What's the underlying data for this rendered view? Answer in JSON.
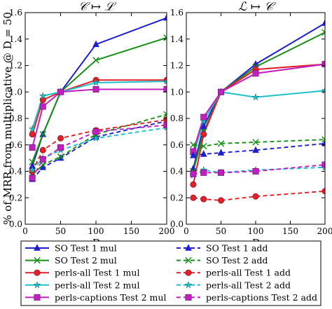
{
  "chart_data": [
    {
      "type": "line",
      "title": "𝒞 ↦ ℒ",
      "ylabel": "% of MRR from multiplicative @ D = 50",
      "xlabel": "D",
      "xlim": [
        0,
        200
      ],
      "ylim": [
        0,
        1.6
      ],
      "xticks": [
        "0",
        "50",
        "100",
        "150",
        "200"
      ],
      "yticks": [
        "0.0",
        "0.2",
        "0.4",
        "0.6",
        "0.8",
        "1.0",
        "1.2",
        "1.4",
        "1.6"
      ],
      "x": [
        10,
        25,
        50,
        100,
        200
      ],
      "series": [
        {
          "name": "SO Test 1 mul",
          "values": [
            0.44,
            0.68,
            1.0,
            1.36,
            1.56
          ],
          "color": "#1f1fd0",
          "dash": false,
          "marker": "triangle"
        },
        {
          "name": "SO Test 2 mul",
          "values": [
            0.47,
            0.68,
            1.0,
            1.24,
            1.41
          ],
          "color": "#1a8f1a",
          "dash": false,
          "marker": "x"
        },
        {
          "name": "perls-all Test 1 mul",
          "values": [
            0.68,
            0.94,
            1.0,
            1.09,
            1.09
          ],
          "color": "#e0202a",
          "dash": false,
          "marker": "circle"
        },
        {
          "name": "perls-all Test 2 mul",
          "values": [
            0.72,
            0.97,
            1.0,
            1.07,
            1.08
          ],
          "color": "#20c0c8",
          "dash": false,
          "marker": "star"
        },
        {
          "name": "perls-captions Test 2 mul",
          "values": [
            0.58,
            0.89,
            1.0,
            1.02,
            1.02
          ],
          "color": "#c020c0",
          "dash": false,
          "marker": "square"
        },
        {
          "name": "SO Test 1 add",
          "values": [
            0.34,
            0.43,
            0.5,
            0.66,
            0.78
          ],
          "color": "#1f1fd0",
          "dash": true,
          "marker": "triangle"
        },
        {
          "name": "SO Test 2 add",
          "values": [
            0.37,
            0.45,
            0.51,
            0.68,
            0.83
          ],
          "color": "#1a8f1a",
          "dash": true,
          "marker": "x"
        },
        {
          "name": "perls-all Test 1 add",
          "values": [
            0.4,
            0.56,
            0.65,
            0.71,
            0.79
          ],
          "color": "#e0202a",
          "dash": true,
          "marker": "circle"
        },
        {
          "name": "perls-all Test 2 add",
          "values": [
            0.41,
            0.5,
            0.56,
            0.65,
            0.73
          ],
          "color": "#20c0c8",
          "dash": true,
          "marker": "star"
        },
        {
          "name": "perls-captions Test 2 add",
          "values": [
            0.35,
            0.49,
            0.58,
            0.7,
            0.75
          ],
          "color": "#c020c0",
          "dash": true,
          "marker": "square"
        }
      ]
    },
    {
      "type": "line",
      "title": "ℒ ↦ 𝒞",
      "xlabel": "D",
      "xlim": [
        0,
        200
      ],
      "ylim": [
        0,
        1.6
      ],
      "xticks": [
        "0",
        "50",
        "100",
        "150",
        "200"
      ],
      "yticks": [
        "0.0",
        "0.2",
        "0.4",
        "0.6",
        "0.8",
        "1.0",
        "1.2",
        "1.4",
        "1.6"
      ],
      "x": [
        10,
        25,
        50,
        100,
        200
      ],
      "series": [
        {
          "name": "SO Test 1 mul",
          "values": [
            0.42,
            0.74,
            1.0,
            1.21,
            1.52
          ],
          "color": "#1f1fd0",
          "dash": false,
          "marker": "triangle"
        },
        {
          "name": "SO Test 2 mul",
          "values": [
            0.4,
            0.7,
            1.0,
            1.19,
            1.45
          ],
          "color": "#1a8f1a",
          "dash": false,
          "marker": "x"
        },
        {
          "name": "perls-all Test 1 mul",
          "values": [
            0.3,
            0.68,
            1.0,
            1.17,
            1.21
          ],
          "color": "#e0202a",
          "dash": false,
          "marker": "circle"
        },
        {
          "name": "perls-all Test 2 mul",
          "values": [
            0.52,
            0.78,
            1.0,
            0.96,
            1.01
          ],
          "color": "#20c0c8",
          "dash": false,
          "marker": "star"
        },
        {
          "name": "perls-captions Test 2 mul",
          "values": [
            0.55,
            0.81,
            1.0,
            1.14,
            1.21
          ],
          "color": "#c020c0",
          "dash": false,
          "marker": "square"
        },
        {
          "name": "SO Test 1 add",
          "values": [
            0.52,
            0.53,
            0.54,
            0.56,
            0.61
          ],
          "color": "#1f1fd0",
          "dash": true,
          "marker": "triangle"
        },
        {
          "name": "SO Test 2 add",
          "values": [
            0.6,
            0.59,
            0.61,
            0.62,
            0.64
          ],
          "color": "#1a8f1a",
          "dash": true,
          "marker": "x"
        },
        {
          "name": "perls-all Test 1 add",
          "values": [
            0.2,
            0.19,
            0.18,
            0.21,
            0.25
          ],
          "color": "#e0202a",
          "dash": true,
          "marker": "circle"
        },
        {
          "name": "perls-all Test 2 add",
          "values": [
            0.37,
            0.41,
            0.39,
            0.41,
            0.43
          ],
          "color": "#20c0c8",
          "dash": true,
          "marker": "star"
        },
        {
          "name": "perls-captions Test 2 add",
          "values": [
            0.38,
            0.39,
            0.39,
            0.4,
            0.45
          ],
          "color": "#c020c0",
          "dash": true,
          "marker": "square"
        }
      ]
    }
  ],
  "legend": {
    "placement": "bottom",
    "entries": [
      {
        "label": "SO Test 1 mul",
        "color": "#1f1fd0",
        "dash": false,
        "marker": "triangle"
      },
      {
        "label": "SO Test 1 add",
        "color": "#1f1fd0",
        "dash": true,
        "marker": "triangle"
      },
      {
        "label": "SO Test 2 mul",
        "color": "#1a8f1a",
        "dash": false,
        "marker": "x"
      },
      {
        "label": "SO Test 2 add",
        "color": "#1a8f1a",
        "dash": true,
        "marker": "x"
      },
      {
        "label": "perls-all Test 1 mul",
        "color": "#e0202a",
        "dash": false,
        "marker": "circle"
      },
      {
        "label": "perls-all Test 1 add",
        "color": "#e0202a",
        "dash": true,
        "marker": "circle"
      },
      {
        "label": "perls-all Test 2 mul",
        "color": "#20c0c8",
        "dash": false,
        "marker": "star"
      },
      {
        "label": "perls-all Test 2 add",
        "color": "#20c0c8",
        "dash": true,
        "marker": "star"
      },
      {
        "label": "perls-captions Test 2 mul",
        "color": "#c020c0",
        "dash": false,
        "marker": "square"
      },
      {
        "label": "perls-captions Test 2 add",
        "color": "#c020c0",
        "dash": true,
        "marker": "square"
      }
    ]
  }
}
